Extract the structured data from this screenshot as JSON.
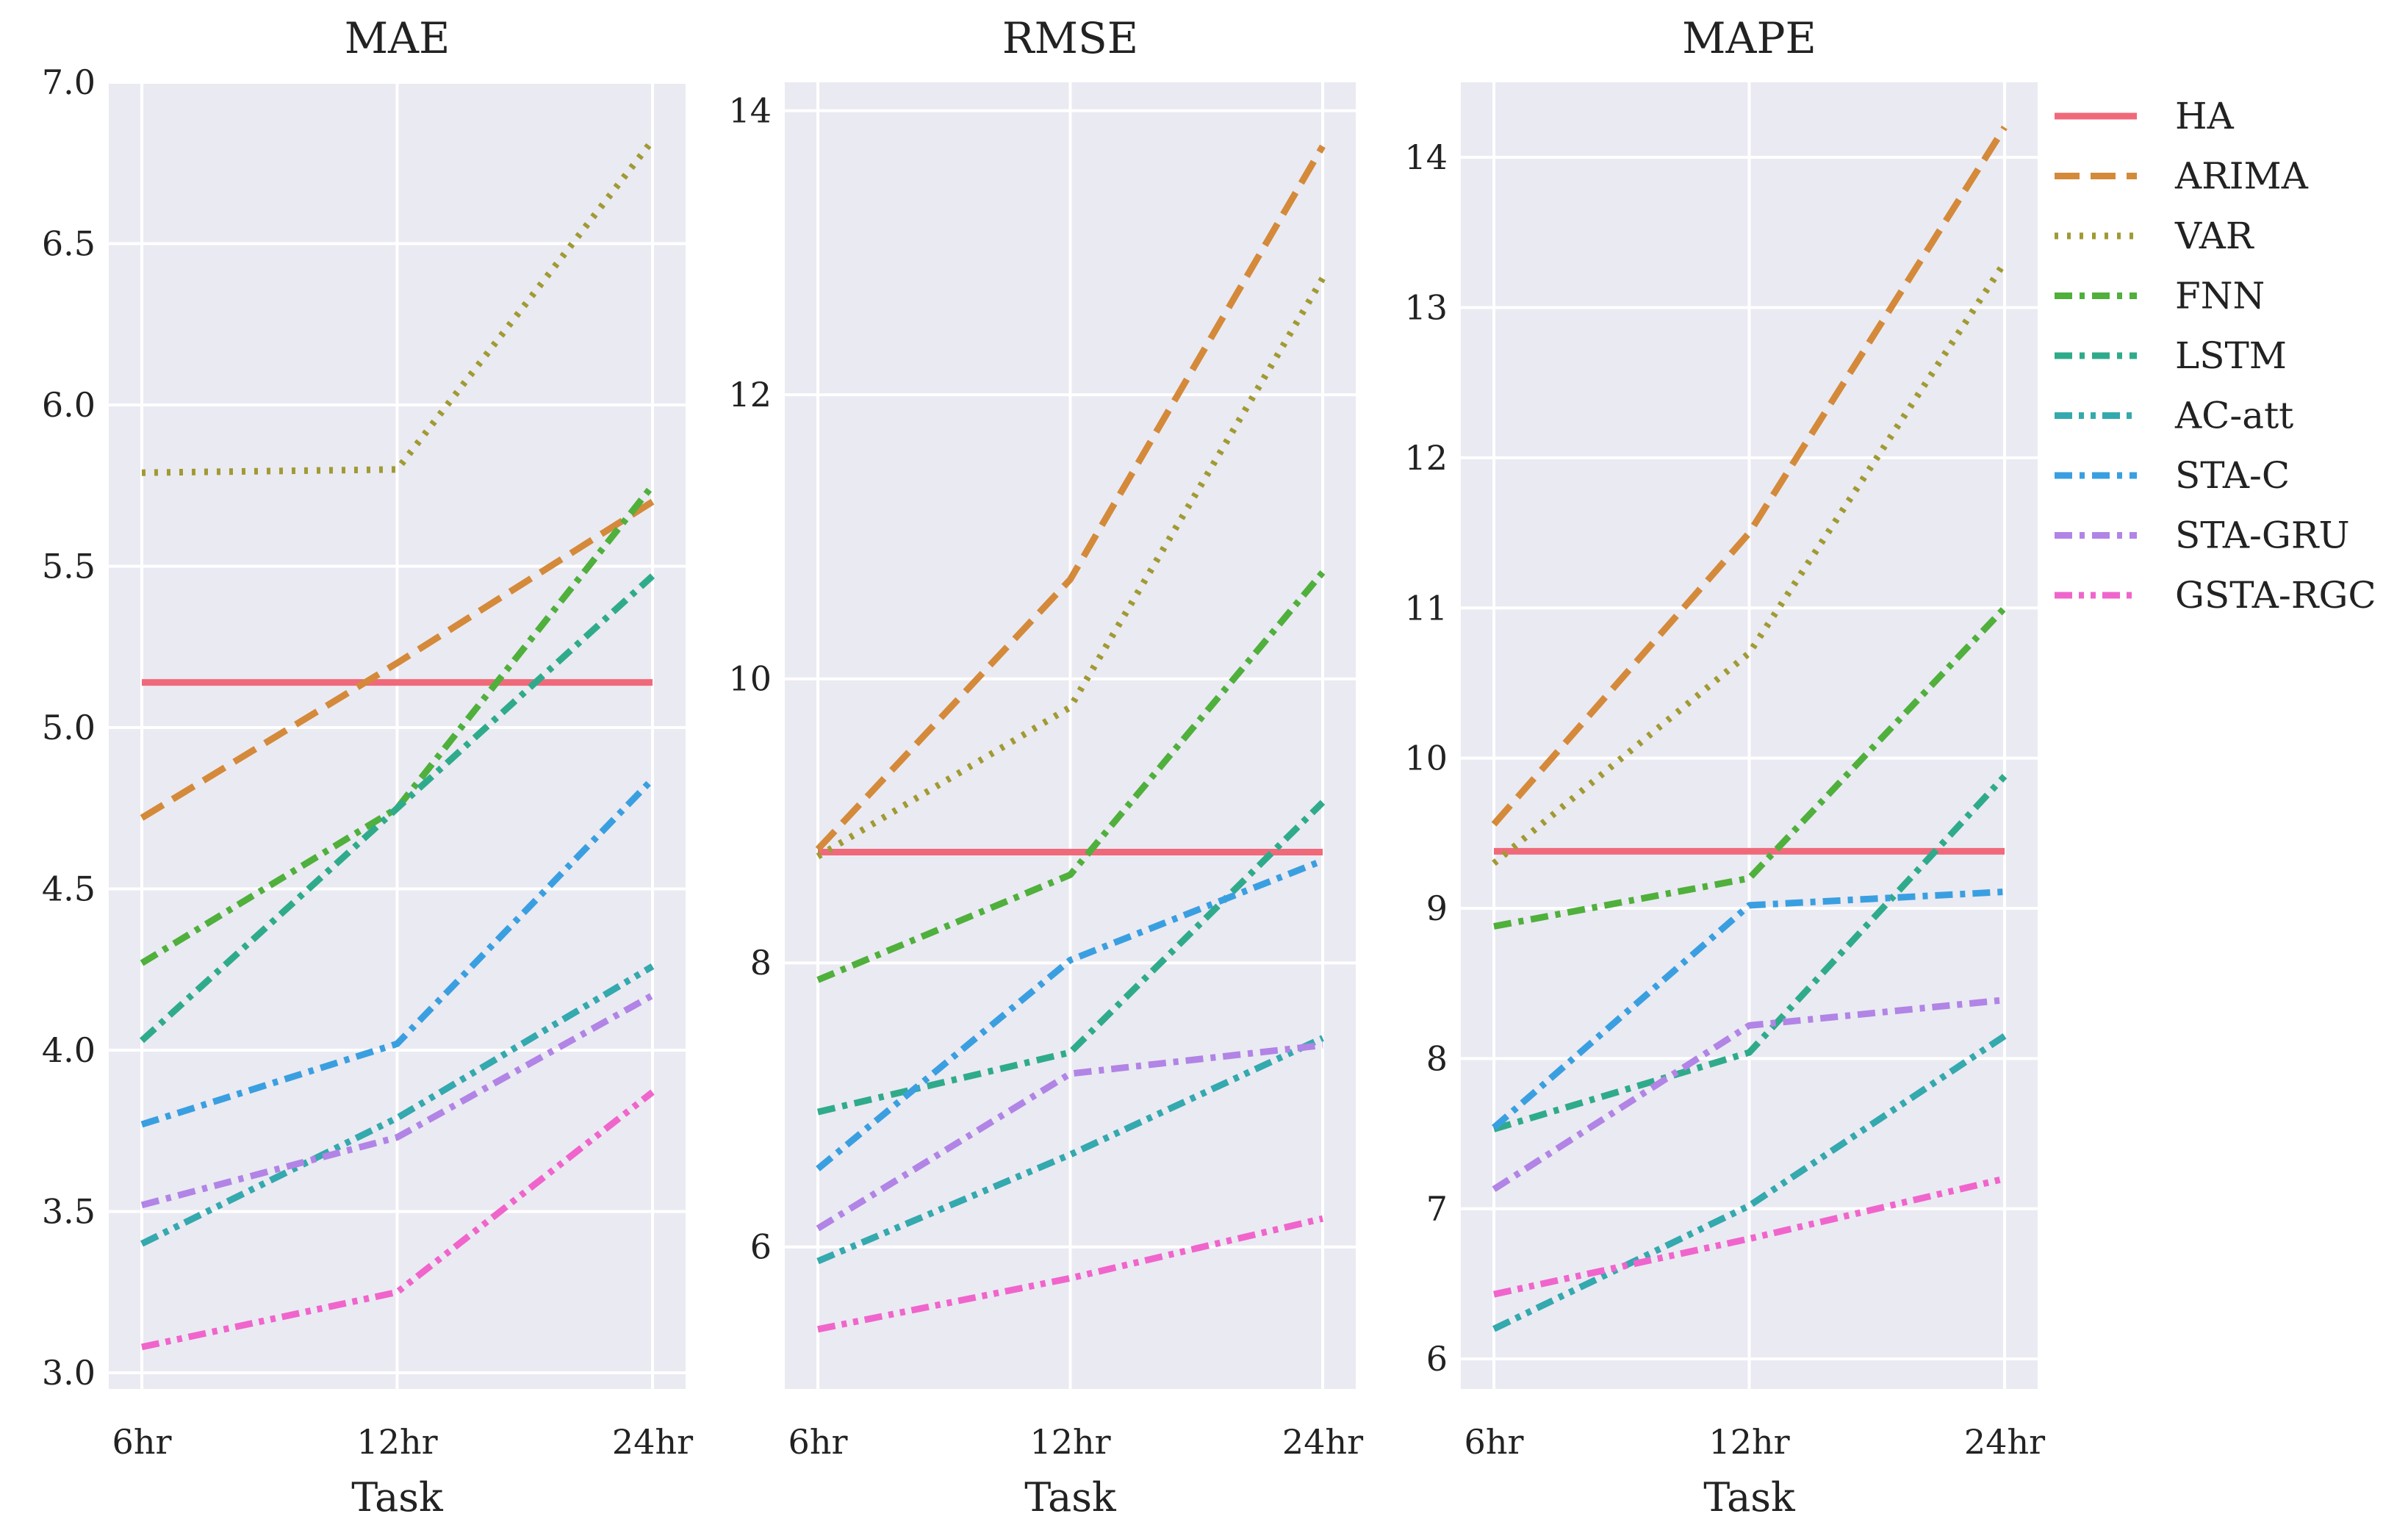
{
  "chart_data": {
    "type": "line",
    "xlabel": "Task",
    "categories": [
      "6hr",
      "12hr",
      "24hr"
    ],
    "legend": {
      "placement": "right",
      "entries": [
        {
          "name": "HA",
          "color": "#f0697a",
          "dash": "solid"
        },
        {
          "name": "ARIMA",
          "color": "#d48a3a",
          "dash": "dashed"
        },
        {
          "name": "VAR",
          "color": "#a19a33",
          "dash": "dotted"
        },
        {
          "name": "FNN",
          "color": "#4fb03c",
          "dash": "dashdot"
        },
        {
          "name": "LSTM",
          "color": "#2fab8c",
          "dash": "dashdot"
        },
        {
          "name": "AC-att",
          "color": "#34a9ae",
          "dash": "dashdotdot"
        },
        {
          "name": "STA-C",
          "color": "#3a9fe0",
          "dash": "dashdot"
        },
        {
          "name": "STA-GRU",
          "color": "#b184e6",
          "dash": "dashdot"
        },
        {
          "name": "GSTA-RGC",
          "color": "#f065cc",
          "dash": "dashdotdot"
        }
      ]
    },
    "panels": [
      {
        "title": "MAE",
        "ylim": [
          2.95,
          7.0
        ],
        "yticks": [
          3.0,
          3.5,
          4.0,
          4.5,
          5.0,
          5.5,
          6.0,
          6.5,
          7.0
        ],
        "ytick_labels": [
          "3.0",
          "3.5",
          "4.0",
          "4.5",
          "5.0",
          "5.5",
          "6.0",
          "6.5",
          "7.0"
        ],
        "series": [
          {
            "name": "HA",
            "values": [
              5.14,
              5.14,
              5.14
            ]
          },
          {
            "name": "ARIMA",
            "values": [
              4.72,
              5.2,
              5.7
            ]
          },
          {
            "name": "VAR",
            "values": [
              5.79,
              5.8,
              6.82
            ]
          },
          {
            "name": "FNN",
            "values": [
              4.27,
              4.75,
              5.75
            ]
          },
          {
            "name": "LSTM",
            "values": [
              4.03,
              4.75,
              5.47
            ]
          },
          {
            "name": "AC-att",
            "values": [
              3.4,
              3.79,
              4.26
            ]
          },
          {
            "name": "STA-C",
            "values": [
              3.77,
              4.02,
              4.84
            ]
          },
          {
            "name": "STA-GRU",
            "values": [
              3.52,
              3.73,
              4.17
            ]
          },
          {
            "name": "GSTA-RGC",
            "values": [
              3.08,
              3.25,
              3.87
            ]
          }
        ]
      },
      {
        "title": "RMSE",
        "ylim": [
          5.0,
          14.2
        ],
        "yticks": [
          6,
          8,
          10,
          12,
          14
        ],
        "ytick_labels": [
          "6",
          "8",
          "10",
          "12",
          "14"
        ],
        "series": [
          {
            "name": "HA",
            "values": [
              8.78,
              8.78,
              8.78
            ]
          },
          {
            "name": "ARIMA",
            "values": [
              8.8,
              10.7,
              13.75
            ]
          },
          {
            "name": "VAR",
            "values": [
              8.75,
              9.8,
              12.82
            ]
          },
          {
            "name": "FNN",
            "values": [
              7.88,
              8.62,
              10.75
            ]
          },
          {
            "name": "LSTM",
            "values": [
              6.95,
              7.37,
              9.13
            ]
          },
          {
            "name": "AC-att",
            "values": [
              5.9,
              6.65,
              7.47
            ]
          },
          {
            "name": "STA-C",
            "values": [
              6.55,
              8.02,
              8.72
            ]
          },
          {
            "name": "STA-GRU",
            "values": [
              6.13,
              7.22,
              7.42
            ]
          },
          {
            "name": "GSTA-RGC",
            "values": [
              5.42,
              5.78,
              6.2
            ]
          }
        ]
      },
      {
        "title": "MAPE",
        "ylim": [
          5.8,
          14.5
        ],
        "yticks": [
          6,
          7,
          8,
          9,
          10,
          11,
          12,
          13,
          14
        ],
        "ytick_labels": [
          "6",
          "7",
          "8",
          "9",
          "10",
          "11",
          "12",
          "13",
          "14"
        ],
        "series": [
          {
            "name": "HA",
            "values": [
              9.38,
              9.38,
              9.38
            ]
          },
          {
            "name": "ARIMA",
            "values": [
              9.56,
              11.5,
              14.2
            ]
          },
          {
            "name": "VAR",
            "values": [
              9.3,
              10.7,
              13.3
            ]
          },
          {
            "name": "FNN",
            "values": [
              8.88,
              9.2,
              11.0
            ]
          },
          {
            "name": "LSTM",
            "values": [
              7.53,
              8.04,
              9.88
            ]
          },
          {
            "name": "AC-att",
            "values": [
              6.2,
              7.02,
              8.15
            ]
          },
          {
            "name": "STA-C",
            "values": [
              7.54,
              9.02,
              9.11
            ]
          },
          {
            "name": "STA-GRU",
            "values": [
              7.13,
              8.22,
              8.39
            ]
          },
          {
            "name": "GSTA-RGC",
            "values": [
              6.43,
              6.8,
              7.2
            ]
          }
        ]
      }
    ]
  }
}
